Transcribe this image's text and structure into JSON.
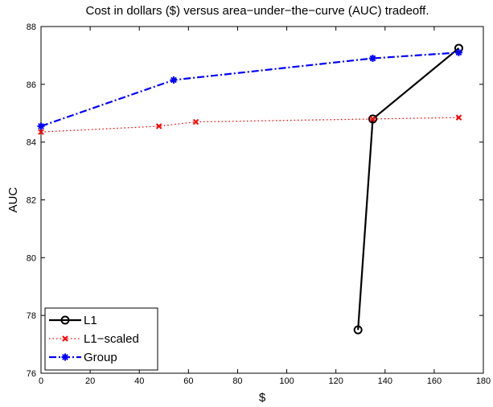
{
  "chart_data": {
    "type": "line",
    "title": "Cost in dollars ($) versus area−under−the−curve (AUC) tradeoff.",
    "xlabel": "$",
    "ylabel": "AUC",
    "xlim": [
      0,
      180
    ],
    "ylim": [
      76,
      88
    ],
    "xticks": [
      0,
      20,
      40,
      60,
      80,
      100,
      120,
      140,
      160,
      180
    ],
    "yticks": [
      76,
      78,
      80,
      82,
      84,
      86,
      88
    ],
    "grid": false,
    "legend_position": "bottom-left",
    "series": [
      {
        "name": "L1",
        "color": "#000000",
        "line_style": "solid",
        "marker": "circle",
        "x": [
          129,
          135,
          170
        ],
        "y": [
          77.5,
          84.8,
          87.25
        ]
      },
      {
        "name": "L1−scaled",
        "color": "#ff0000",
        "line_style": "dotted",
        "marker": "x",
        "x": [
          0,
          48,
          63,
          135,
          170
        ],
        "y": [
          84.35,
          84.55,
          84.7,
          84.8,
          84.85
        ]
      },
      {
        "name": "Group",
        "color": "#0000ff",
        "line_style": "dash-dot",
        "marker": "star",
        "x": [
          0,
          54,
          135,
          170
        ],
        "y": [
          84.55,
          86.15,
          86.9,
          87.1
        ]
      }
    ]
  }
}
